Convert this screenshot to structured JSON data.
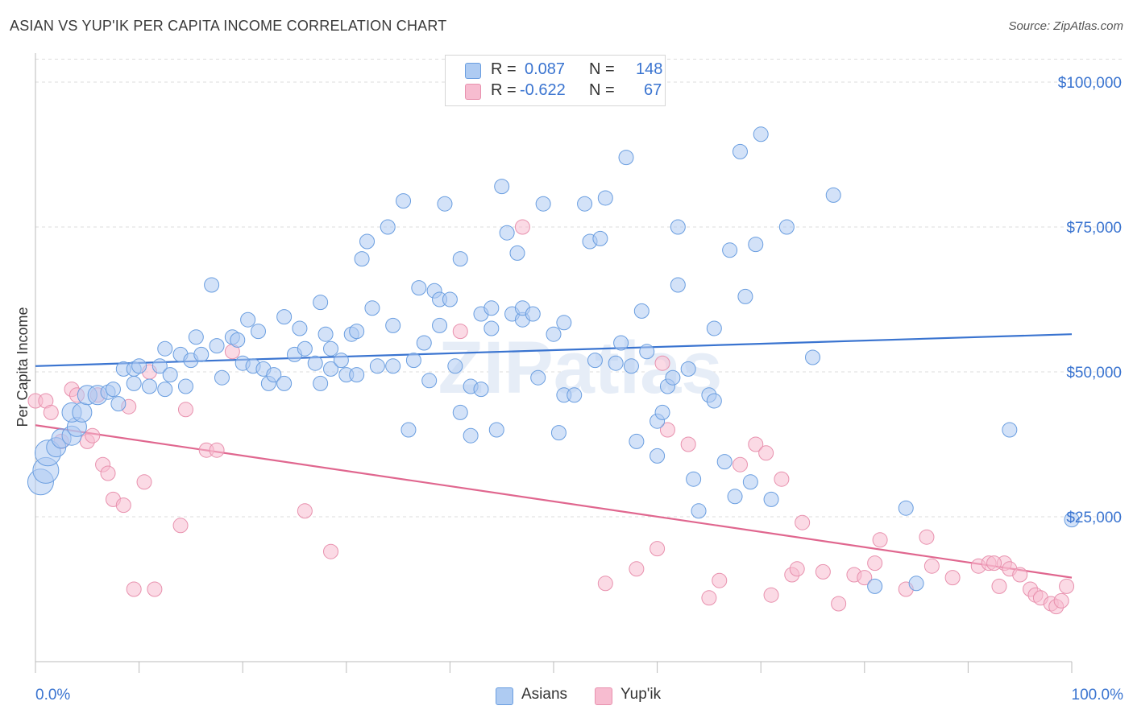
{
  "title": "ASIAN VS YUP'IK PER CAPITA INCOME CORRELATION CHART",
  "source": "Source: ZipAtlas.com",
  "watermark": "ZIPatlas",
  "legend": {
    "rows": [
      {
        "r_label": "R =",
        "r_value": "0.087",
        "n_label": "N =",
        "n_value": "148",
        "color": "#aecbf2",
        "border": "#6a9ee0"
      },
      {
        "r_label": "R =",
        "r_value": "-0.622",
        "n_label": "N =",
        "n_value": "67",
        "color": "#f7bcd0",
        "border": "#e891ae"
      }
    ]
  },
  "bottom_legend": [
    {
      "label": "Asians",
      "color": "#aecbf2",
      "border": "#6a9ee0"
    },
    {
      "label": "Yup'ik",
      "color": "#f7bcd0",
      "border": "#e891ae"
    }
  ],
  "chart_data": {
    "type": "scatter",
    "title": "ASIAN VS YUP'IK PER CAPITA INCOME CORRELATION CHART",
    "xlabel": "",
    "ylabel": "Per Capita Income",
    "xlim": [
      0,
      100
    ],
    "ylim": [
      0,
      105000
    ],
    "x_tick_labels": [
      "0.0%",
      "100.0%"
    ],
    "y_ticks": [
      25000,
      50000,
      75000,
      100000
    ],
    "y_tick_labels": [
      "$25,000",
      "$50,000",
      "$75,000",
      "$100,000"
    ],
    "grid": true,
    "legend_position": "top-center",
    "colors": {
      "asians": "#3a74d0",
      "yupik": "#e0678f"
    },
    "series": [
      {
        "name": "Asians",
        "color": "#3a74d0",
        "trend": {
          "x": [
            0,
            100
          ],
          "y": [
            51000,
            56500
          ]
        },
        "points": [
          [
            0.5,
            31000,
            3
          ],
          [
            1,
            33000,
            3
          ],
          [
            1.2,
            36000,
            3
          ],
          [
            2,
            37000,
            2
          ],
          [
            2.5,
            38500,
            2
          ],
          [
            3.5,
            39000,
            2
          ],
          [
            4,
            40500,
            2
          ],
          [
            3.5,
            43000,
            2
          ],
          [
            4.5,
            43000,
            2
          ],
          [
            5,
            46000,
            2
          ],
          [
            6,
            46000,
            2
          ],
          [
            7,
            46500,
            1
          ],
          [
            7.5,
            47000,
            1
          ],
          [
            8,
            44500,
            1
          ],
          [
            8.5,
            50500,
            1
          ],
          [
            9.5,
            50500,
            1
          ],
          [
            10,
            51000,
            1
          ],
          [
            9.5,
            48000,
            1
          ],
          [
            11,
            47500,
            1
          ],
          [
            12,
            51000,
            1
          ],
          [
            12.5,
            47000,
            1
          ],
          [
            12.5,
            54000,
            1
          ],
          [
            13,
            49500,
            1
          ],
          [
            14,
            53000,
            1
          ],
          [
            14.5,
            47500,
            1
          ],
          [
            15,
            52000,
            1
          ],
          [
            15.5,
            56000,
            1
          ],
          [
            16,
            53000,
            1
          ],
          [
            17,
            65000,
            1
          ],
          [
            17.5,
            54500,
            1
          ],
          [
            18,
            49000,
            1
          ],
          [
            19,
            56000,
            1
          ],
          [
            19.5,
            55500,
            1
          ],
          [
            20,
            51500,
            1
          ],
          [
            20.5,
            59000,
            1
          ],
          [
            21,
            51000,
            1
          ],
          [
            21.5,
            57000,
            1
          ],
          [
            22,
            50500,
            1
          ],
          [
            22.5,
            48000,
            1
          ],
          [
            23,
            49500,
            1
          ],
          [
            24,
            48000,
            1
          ],
          [
            24,
            59500,
            1
          ],
          [
            25,
            53000,
            1
          ],
          [
            25.5,
            57500,
            1
          ],
          [
            26,
            54000,
            1
          ],
          [
            27,
            51500,
            1
          ],
          [
            27.5,
            62000,
            1
          ],
          [
            27.5,
            48000,
            1
          ],
          [
            28,
            56500,
            1
          ],
          [
            28.5,
            54000,
            1
          ],
          [
            28.5,
            50500,
            1
          ],
          [
            29.5,
            52000,
            1
          ],
          [
            30,
            49500,
            1
          ],
          [
            30.5,
            56500,
            1
          ],
          [
            31,
            57000,
            1
          ],
          [
            31,
            49500,
            1
          ],
          [
            31.5,
            69500,
            1
          ],
          [
            32,
            72500,
            1
          ],
          [
            32.5,
            61000,
            1
          ],
          [
            33,
            51000,
            1
          ],
          [
            34,
            75000,
            1
          ],
          [
            34.5,
            58000,
            1
          ],
          [
            34.5,
            51000,
            1
          ],
          [
            35.5,
            79500,
            1
          ],
          [
            36,
            40000,
            1
          ],
          [
            36.5,
            52000,
            1
          ],
          [
            37,
            64500,
            1
          ],
          [
            37.5,
            55000,
            1
          ],
          [
            38,
            48500,
            1
          ],
          [
            38.5,
            64000,
            1
          ],
          [
            39,
            62500,
            1
          ],
          [
            39,
            58000,
            1
          ],
          [
            39.5,
            79000,
            1
          ],
          [
            40,
            62500,
            1
          ],
          [
            40.5,
            51000,
            1
          ],
          [
            41,
            43000,
            1
          ],
          [
            41,
            69500,
            1
          ],
          [
            42,
            39000,
            1
          ],
          [
            42,
            47500,
            1
          ],
          [
            43,
            47000,
            1
          ],
          [
            43,
            60000,
            1
          ],
          [
            44,
            61000,
            1
          ],
          [
            44,
            57500,
            1
          ],
          [
            44.5,
            40000,
            1
          ],
          [
            45,
            82000,
            1
          ],
          [
            45.5,
            74000,
            1
          ],
          [
            46,
            60000,
            1
          ],
          [
            46.5,
            70500,
            1
          ],
          [
            47,
            59000,
            1
          ],
          [
            47,
            61000,
            1
          ],
          [
            48,
            60000,
            1
          ],
          [
            48.5,
            49000,
            1
          ],
          [
            49,
            79000,
            1
          ],
          [
            50,
            56500,
            1
          ],
          [
            50.5,
            39500,
            1
          ],
          [
            51,
            58500,
            1
          ],
          [
            51,
            46000,
            1
          ],
          [
            52,
            46000,
            1
          ],
          [
            53,
            79000,
            1
          ],
          [
            53.5,
            72500,
            1
          ],
          [
            54,
            52000,
            1
          ],
          [
            54.5,
            73000,
            1
          ],
          [
            55,
            80000,
            1
          ],
          [
            56,
            51500,
            1
          ],
          [
            56.5,
            55000,
            1
          ],
          [
            57,
            87000,
            1
          ],
          [
            57.5,
            51000,
            1
          ],
          [
            58,
            38000,
            1
          ],
          [
            58.5,
            60500,
            1
          ],
          [
            59,
            53500,
            1
          ],
          [
            60,
            41500,
            1
          ],
          [
            60,
            35500,
            1
          ],
          [
            60.5,
            43000,
            1
          ],
          [
            61,
            47500,
            1
          ],
          [
            61.5,
            49000,
            1
          ],
          [
            62,
            65000,
            1
          ],
          [
            62,
            75000,
            1
          ],
          [
            63,
            50500,
            1
          ],
          [
            63.5,
            31500,
            1
          ],
          [
            64,
            26000,
            1
          ],
          [
            65,
            46000,
            1
          ],
          [
            65.5,
            57500,
            1
          ],
          [
            65.5,
            45000,
            1
          ],
          [
            66.5,
            34500,
            1
          ],
          [
            67,
            71000,
            1
          ],
          [
            67.5,
            28500,
            1
          ],
          [
            68,
            88000,
            1
          ],
          [
            68.5,
            63000,
            1
          ],
          [
            69,
            31000,
            1
          ],
          [
            69.5,
            72000,
            1
          ],
          [
            70,
            91000,
            1
          ],
          [
            71,
            28000,
            1
          ],
          [
            72.5,
            75000,
            1
          ],
          [
            75,
            52500,
            1
          ],
          [
            77,
            80500,
            1
          ],
          [
            81,
            13000,
            1
          ],
          [
            84,
            26500,
            1
          ],
          [
            85,
            13500,
            1
          ],
          [
            100,
            24500,
            1
          ],
          [
            94,
            40000,
            1
          ]
        ]
      },
      {
        "name": "Yup'ik",
        "color": "#e0678f",
        "trend": {
          "x": [
            0,
            100
          ],
          "y": [
            40800,
            14500
          ]
        },
        "points": [
          [
            0,
            45000,
            1
          ],
          [
            1,
            45000,
            1
          ],
          [
            1.5,
            43000,
            1
          ],
          [
            2.5,
            38000,
            1
          ],
          [
            3.5,
            47000,
            1
          ],
          [
            4,
            46000,
            1
          ],
          [
            5,
            38000,
            1
          ],
          [
            5.5,
            39000,
            1
          ],
          [
            6,
            46000,
            1
          ],
          [
            6.5,
            34000,
            1
          ],
          [
            7,
            32500,
            1
          ],
          [
            7.5,
            28000,
            1
          ],
          [
            8.5,
            27000,
            1
          ],
          [
            9,
            44000,
            1
          ],
          [
            9.5,
            12500,
            1
          ],
          [
            10.5,
            31000,
            1
          ],
          [
            11,
            50000,
            1
          ],
          [
            11.5,
            12500,
            1
          ],
          [
            14,
            23500,
            1
          ],
          [
            14.5,
            43500,
            1
          ],
          [
            16.5,
            36500,
            1
          ],
          [
            17.5,
            36500,
            1
          ],
          [
            19,
            53500,
            1
          ],
          [
            26,
            26000,
            1
          ],
          [
            28.5,
            19000,
            1
          ],
          [
            41,
            57000,
            1
          ],
          [
            47,
            75000,
            1
          ],
          [
            55,
            13500,
            1
          ],
          [
            58,
            16000,
            1
          ],
          [
            60,
            19500,
            1
          ],
          [
            60.5,
            51500,
            1
          ],
          [
            61,
            40000,
            1
          ],
          [
            63,
            37500,
            1
          ],
          [
            65,
            11000,
            1
          ],
          [
            66,
            14000,
            1
          ],
          [
            68,
            34000,
            1
          ],
          [
            69.5,
            37500,
            1
          ],
          [
            70.5,
            36000,
            1
          ],
          [
            71,
            11500,
            1
          ],
          [
            72,
            31500,
            1
          ],
          [
            73,
            15000,
            1
          ],
          [
            73.5,
            16000,
            1
          ],
          [
            74,
            24000,
            1
          ],
          [
            76,
            15500,
            1
          ],
          [
            77.5,
            10000,
            1
          ],
          [
            79,
            15000,
            1
          ],
          [
            80,
            14500,
            1
          ],
          [
            81,
            17000,
            1
          ],
          [
            81.5,
            21000,
            1
          ],
          [
            84,
            12500,
            1
          ],
          [
            86,
            21500,
            1
          ],
          [
            86.5,
            16500,
            1
          ],
          [
            88.5,
            14500,
            1
          ],
          [
            91,
            16500,
            1
          ],
          [
            92,
            17000,
            1
          ],
          [
            93,
            13000,
            1
          ],
          [
            93.5,
            17000,
            1
          ],
          [
            94,
            16000,
            1
          ],
          [
            95,
            15000,
            1
          ],
          [
            96,
            12500,
            1
          ],
          [
            96.5,
            11500,
            1
          ],
          [
            97,
            11000,
            1
          ],
          [
            98,
            10000,
            1
          ],
          [
            98.5,
            9500,
            1
          ],
          [
            99,
            10500,
            1
          ],
          [
            99.5,
            13000,
            1
          ],
          [
            92.5,
            17000,
            1
          ]
        ]
      }
    ]
  }
}
